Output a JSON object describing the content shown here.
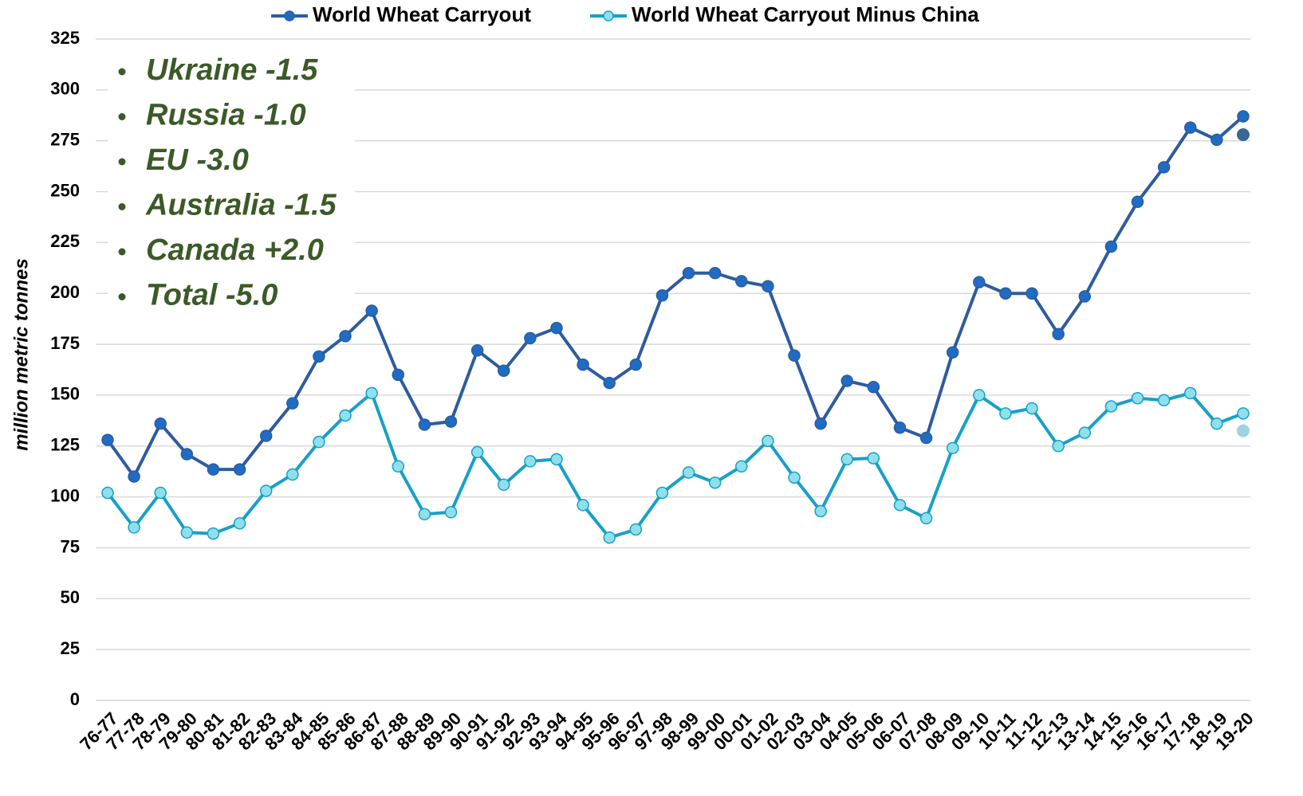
{
  "chart_data": {
    "type": "line",
    "y_axis_label": "million metric tonnes",
    "annotations": [
      "Ukraine -1.5",
      "Russia -1.0",
      "EU -3.0",
      "Australia -1.5",
      "Canada +2.0",
      "Total -5.0"
    ],
    "categories": [
      "76-77",
      "77-78",
      "78-79",
      "79-80",
      "80-81",
      "81-82",
      "82-83",
      "83-84",
      "84-85",
      "85-86",
      "86-87",
      "87-88",
      "88-89",
      "89-90",
      "90-91",
      "91-92",
      "92-93",
      "93-94",
      "94-95",
      "95-96",
      "96-97",
      "97-98",
      "98-99",
      "99-00",
      "00-01",
      "01-02",
      "02-03",
      "03-04",
      "04-05",
      "05-06",
      "06-07",
      "07-08",
      "08-09",
      "09-10",
      "10-11",
      "11-12",
      "12-13",
      "13-14",
      "14-15",
      "15-16",
      "16-17",
      "17-18",
      "18-19",
      "19-20"
    ],
    "series": [
      {
        "name": "World Wheat Carryout",
        "color": "#2d5c9e",
        "marker_color": "#1f6cc4",
        "prior_color": "#3a6795",
        "values": [
          128,
          110,
          136,
          121,
          113.5,
          113.5,
          130,
          146,
          169,
          179,
          191.5,
          160,
          135.5,
          137,
          172,
          162,
          178,
          183,
          165,
          156,
          165,
          199,
          210,
          210,
          206,
          203.5,
          169.5,
          136,
          157,
          154,
          134,
          129,
          171,
          205.5,
          200,
          200,
          180,
          198.5,
          223,
          245,
          262,
          281.5,
          275.5,
          287
        ],
        "prior_estimate": 278
      },
      {
        "name": "World Wheat Carryout Minus China",
        "color": "#17a0c8",
        "marker_color": "#8fe0ea",
        "prior_color": "#9fd3df",
        "values": [
          102,
          85,
          102,
          82.5,
          82,
          87,
          103,
          111,
          127,
          140,
          151,
          115,
          91.5,
          92.5,
          122,
          106,
          117.5,
          118.5,
          96,
          80,
          84,
          102,
          112,
          107,
          115,
          127.5,
          109.5,
          93,
          118.5,
          119,
          96,
          89.5,
          124,
          150,
          141,
          143.5,
          125,
          131.5,
          144.5,
          148.5,
          147.5,
          151,
          136,
          141
        ],
        "prior_estimate": 132.5
      }
    ],
    "ylim": [
      0,
      325
    ],
    "yticks": [
      0,
      25,
      50,
      75,
      100,
      125,
      150,
      175,
      200,
      225,
      250,
      275,
      300,
      325
    ],
    "grid": true,
    "legend": "top"
  }
}
